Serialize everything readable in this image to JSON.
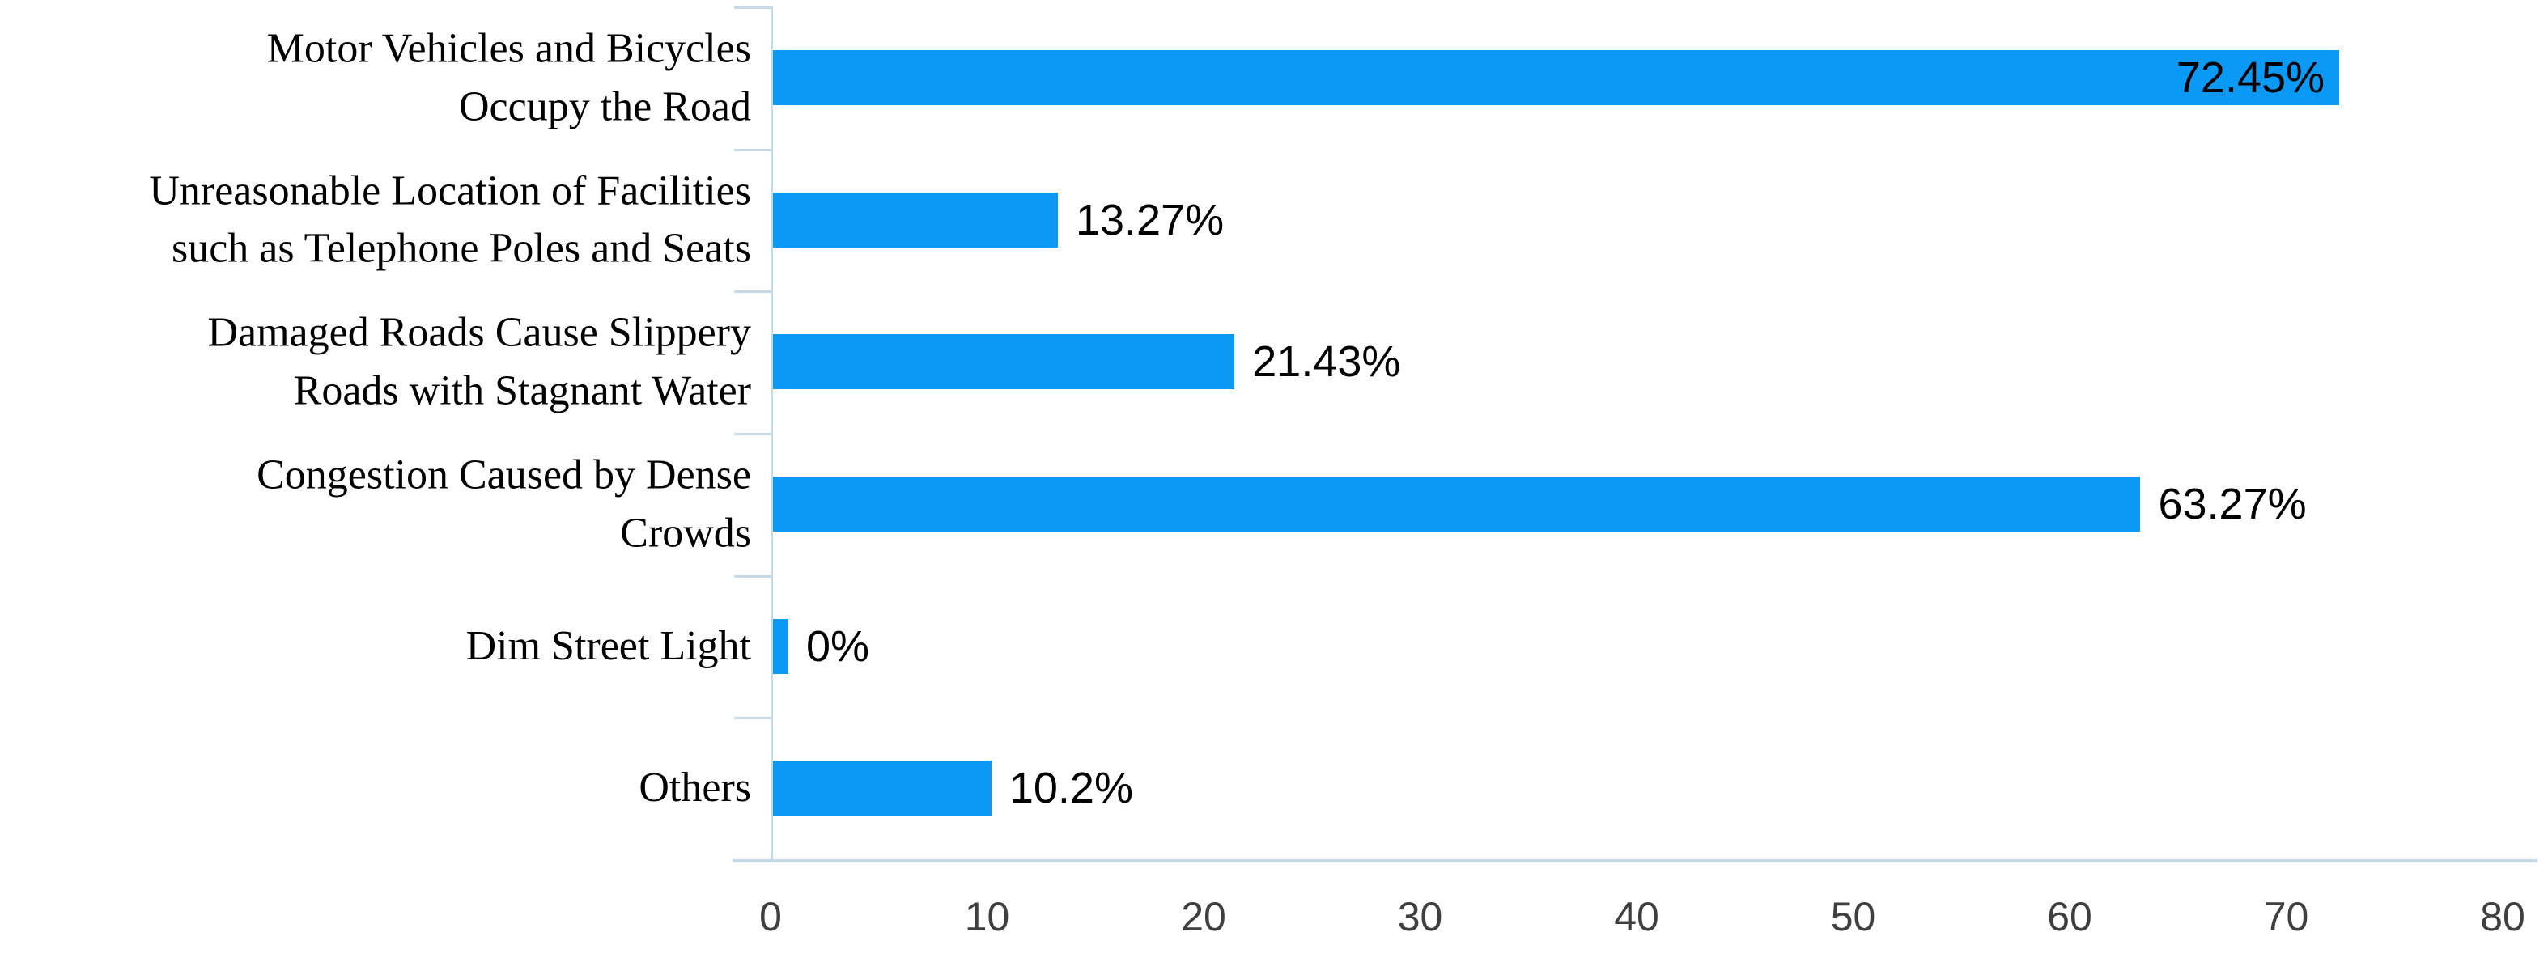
{
  "chart_data": {
    "type": "bar",
    "orientation": "horizontal",
    "title": "",
    "xlabel": "",
    "ylabel": "",
    "categories": [
      "Motor Vehicles and Bicycles Occupy the Road",
      "Unreasonable Location of Facilities such as Telephone Poles and Seats",
      "Damaged Roads Cause Slippery Roads with Stagnant Water",
      "Congestion Caused by Dense Crowds",
      "Dim Street Light",
      "Others"
    ],
    "category_lines": [
      [
        "Motor Vehicles and Bicycles",
        "Occupy the Road"
      ],
      [
        "Unreasonable Location of Facilities",
        "such as Telephone Poles and Seats"
      ],
      [
        "Damaged Roads Cause Slippery",
        "Roads with Stagnant Water"
      ],
      [
        "Congestion Caused by Dense",
        "Crowds"
      ],
      [
        "Dim Street Light"
      ],
      [
        "Others"
      ]
    ],
    "values": [
      72.45,
      13.27,
      21.43,
      63.27,
      0,
      10.2
    ],
    "value_labels": [
      "72.45%",
      "13.27%",
      "21.43%",
      "63.27%",
      "0%",
      "10.2%"
    ],
    "value_label_inside": [
      true,
      false,
      false,
      false,
      false,
      false
    ],
    "xlim": [
      0,
      80
    ],
    "x_ticks": [
      "0",
      "10",
      "20",
      "30",
      "40",
      "50",
      "60",
      "70",
      "80"
    ],
    "grid": false,
    "legend": null,
    "colors": {
      "bar": "#0A99F5",
      "axis_line": "#C6D9E8",
      "tick_label": "#3F3F3F",
      "value_label": "#000000",
      "category_label": "#000000",
      "background": "#FFFFFF"
    }
  }
}
